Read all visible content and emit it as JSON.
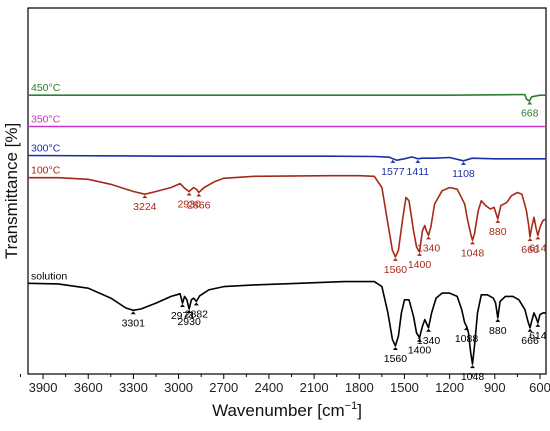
{
  "chart_data": {
    "type": "line",
    "xlabel": "Wavenumber [cm",
    "xlabel_sup": "−1",
    "xlabel_end": "]",
    "ylabel": "Transmittance [%]",
    "xlim": [
      4000,
      560
    ],
    "x_reversed": true,
    "x_ticks": [
      "3900",
      "3600",
      "3300",
      "3000",
      "2700",
      "2400",
      "2100",
      "1800",
      "1500",
      "1200",
      "900",
      "600"
    ],
    "y_ticks_visible": false,
    "grid": false,
    "series": [
      {
        "name": "450°C",
        "color": "#2e7d32",
        "offset": 8.45,
        "points": [
          [
            4000,
            0
          ],
          [
            3000,
            0
          ],
          [
            2000,
            0
          ],
          [
            1200,
            0
          ],
          [
            700,
            0.02
          ],
          [
            690,
            -0.12
          ],
          [
            670,
            -0.18
          ],
          [
            655,
            -0.05
          ],
          [
            600,
            0
          ],
          [
            560,
            0
          ]
        ],
        "annotations": [
          {
            "x": 668,
            "label": "668"
          }
        ]
      },
      {
        "name": "350°C",
        "color": "#cc33cc",
        "offset": 7.5,
        "points": [
          [
            4000,
            0
          ],
          [
            3000,
            0
          ],
          [
            2000,
            0
          ],
          [
            1000,
            0
          ],
          [
            560,
            0
          ]
        ],
        "annotations": []
      },
      {
        "name": "300°C",
        "color": "#1a2fa8",
        "offset": 6.62,
        "points": [
          [
            4000,
            0
          ],
          [
            3000,
            -0.02
          ],
          [
            2000,
            -0.02
          ],
          [
            1700,
            -0.03
          ],
          [
            1600,
            -0.05
          ],
          [
            1577,
            -0.1
          ],
          [
            1550,
            -0.14
          ],
          [
            1500,
            -0.1
          ],
          [
            1450,
            -0.04
          ],
          [
            1411,
            -0.1
          ],
          [
            1380,
            -0.08
          ],
          [
            1300,
            -0.08
          ],
          [
            1200,
            -0.06
          ],
          [
            1108,
            -0.16
          ],
          [
            1050,
            -0.08
          ],
          [
            900,
            -0.1
          ],
          [
            700,
            -0.1
          ],
          [
            600,
            -0.1
          ],
          [
            560,
            -0.1
          ]
        ],
        "annotations": [
          {
            "x": 1577,
            "label": "1577"
          },
          {
            "x": 1411,
            "label": "1411"
          },
          {
            "x": 1108,
            "label": "1108"
          }
        ]
      },
      {
        "name": "100°C",
        "color": "#a52a1a",
        "offset": 5.95,
        "points": [
          [
            4000,
            0
          ],
          [
            3800,
            0
          ],
          [
            3600,
            -0.05
          ],
          [
            3450,
            -0.2
          ],
          [
            3300,
            -0.42
          ],
          [
            3224,
            -0.5
          ],
          [
            3150,
            -0.42
          ],
          [
            3050,
            -0.3
          ],
          [
            2990,
            -0.18
          ],
          [
            2960,
            -0.32
          ],
          [
            2930,
            -0.42
          ],
          [
            2900,
            -0.3
          ],
          [
            2880,
            -0.36
          ],
          [
            2866,
            -0.45
          ],
          [
            2830,
            -0.3
          ],
          [
            2760,
            -0.12
          ],
          [
            2700,
            -0.02
          ],
          [
            2500,
            0.04
          ],
          [
            2000,
            0.06
          ],
          [
            1800,
            0.06
          ],
          [
            1700,
            0.04
          ],
          [
            1650,
            -0.3
          ],
          [
            1610,
            -1.4
          ],
          [
            1580,
            -2.2
          ],
          [
            1560,
            -2.4
          ],
          [
            1540,
            -2.2
          ],
          [
            1510,
            -1.2
          ],
          [
            1490,
            -0.6
          ],
          [
            1470,
            -0.7
          ],
          [
            1440,
            -1.6
          ],
          [
            1420,
            -2.1
          ],
          [
            1400,
            -2.25
          ],
          [
            1380,
            -1.6
          ],
          [
            1365,
            -1.45
          ],
          [
            1355,
            -1.6
          ],
          [
            1340,
            -1.75
          ],
          [
            1325,
            -1.5
          ],
          [
            1300,
            -0.8
          ],
          [
            1250,
            -0.4
          ],
          [
            1200,
            -0.3
          ],
          [
            1150,
            -0.35
          ],
          [
            1100,
            -0.8
          ],
          [
            1080,
            -1.3
          ],
          [
            1060,
            -1.7
          ],
          [
            1048,
            -1.9
          ],
          [
            1035,
            -1.7
          ],
          [
            1010,
            -1.0
          ],
          [
            990,
            -0.7
          ],
          [
            960,
            -0.85
          ],
          [
            930,
            -0.95
          ],
          [
            905,
            -0.9
          ],
          [
            880,
            -1.25
          ],
          [
            860,
            -0.85
          ],
          [
            820,
            -0.75
          ],
          [
            790,
            -0.55
          ],
          [
            750,
            -0.45
          ],
          [
            720,
            -0.5
          ],
          [
            690,
            -1.0
          ],
          [
            675,
            -1.45
          ],
          [
            666,
            -1.8
          ],
          [
            655,
            -1.5
          ],
          [
            640,
            -1.2
          ],
          [
            625,
            -1.55
          ],
          [
            614,
            -1.75
          ],
          [
            600,
            -1.5
          ],
          [
            580,
            -1.3
          ],
          [
            560,
            -1.25
          ]
        ],
        "annotations": [
          {
            "x": 3224,
            "label": "3224"
          },
          {
            "x": 2930,
            "label": "2930"
          },
          {
            "x": 2866,
            "label": "2866"
          },
          {
            "x": 1560,
            "label": "1560"
          },
          {
            "x": 1400,
            "label": "1400"
          },
          {
            "x": 1340,
            "label": "1340"
          },
          {
            "x": 1048,
            "label": "1048"
          },
          {
            "x": 880,
            "label": "880"
          },
          {
            "x": 666,
            "label": "666"
          },
          {
            "x": 614,
            "label": "614"
          }
        ]
      },
      {
        "name": "solution",
        "color": "#000000",
        "offset": 2.75,
        "points": [
          [
            4000,
            0
          ],
          [
            3800,
            -0.02
          ],
          [
            3600,
            -0.15
          ],
          [
            3450,
            -0.45
          ],
          [
            3350,
            -0.75
          ],
          [
            3301,
            -0.82
          ],
          [
            3250,
            -0.78
          ],
          [
            3150,
            -0.6
          ],
          [
            3050,
            -0.4
          ],
          [
            2990,
            -0.32
          ],
          [
            2974,
            -0.6
          ],
          [
            2960,
            -0.4
          ],
          [
            2945,
            -0.5
          ],
          [
            2930,
            -0.78
          ],
          [
            2915,
            -0.5
          ],
          [
            2900,
            -0.45
          ],
          [
            2882,
            -0.55
          ],
          [
            2860,
            -0.38
          ],
          [
            2800,
            -0.2
          ],
          [
            2700,
            -0.1
          ],
          [
            2500,
            -0.05
          ],
          [
            2200,
            0
          ],
          [
            1900,
            0.05
          ],
          [
            1700,
            0.05
          ],
          [
            1650,
            -0.1
          ],
          [
            1610,
            -0.9
          ],
          [
            1580,
            -1.7
          ],
          [
            1560,
            -1.9
          ],
          [
            1540,
            -1.6
          ],
          [
            1520,
            -0.9
          ],
          [
            1500,
            -0.5
          ],
          [
            1470,
            -0.5
          ],
          [
            1440,
            -1.0
          ],
          [
            1420,
            -1.5
          ],
          [
            1400,
            -1.65
          ],
          [
            1380,
            -1.3
          ],
          [
            1365,
            -1.1
          ],
          [
            1350,
            -1.25
          ],
          [
            1340,
            -1.35
          ],
          [
            1320,
            -0.9
          ],
          [
            1290,
            -0.45
          ],
          [
            1250,
            -0.3
          ],
          [
            1200,
            -0.3
          ],
          [
            1150,
            -0.4
          ],
          [
            1120,
            -0.8
          ],
          [
            1100,
            -1.2
          ],
          [
            1088,
            -1.3
          ],
          [
            1075,
            -1.5
          ],
          [
            1060,
            -2.1
          ],
          [
            1048,
            -2.45
          ],
          [
            1035,
            -1.9
          ],
          [
            1015,
            -0.9
          ],
          [
            990,
            -0.35
          ],
          [
            950,
            -0.35
          ],
          [
            910,
            -0.45
          ],
          [
            895,
            -0.6
          ],
          [
            880,
            -1.05
          ],
          [
            865,
            -0.55
          ],
          [
            830,
            -0.4
          ],
          [
            780,
            -0.4
          ],
          [
            740,
            -0.5
          ],
          [
            700,
            -0.8
          ],
          [
            680,
            -1.15
          ],
          [
            666,
            -1.35
          ],
          [
            652,
            -1.1
          ],
          [
            640,
            -0.9
          ],
          [
            625,
            -1.05
          ],
          [
            614,
            -1.2
          ],
          [
            600,
            -0.95
          ],
          [
            580,
            -0.9
          ],
          [
            560,
            -0.9
          ]
        ],
        "annotations": [
          {
            "x": 3301,
            "label": "3301"
          },
          {
            "x": 2974,
            "label": "2974"
          },
          {
            "x": 2930,
            "label": "2930"
          },
          {
            "x": 2882,
            "label": "2882"
          },
          {
            "x": 1560,
            "label": "1560"
          },
          {
            "x": 1400,
            "label": "1400"
          },
          {
            "x": 1340,
            "label": "1340"
          },
          {
            "x": 1088,
            "label": "1088"
          },
          {
            "x": 1048,
            "label": "1048"
          },
          {
            "x": 880,
            "label": "880"
          },
          {
            "x": 666,
            "label": "666"
          },
          {
            "x": 614,
            "label": "614"
          }
        ]
      }
    ]
  }
}
